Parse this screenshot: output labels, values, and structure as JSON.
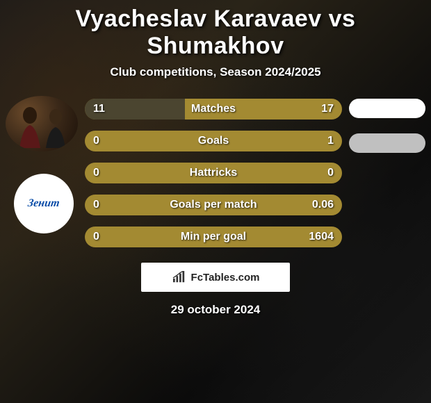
{
  "title": "Vyacheslav Karavaev vs Shumakhov",
  "subtitle": "Club competitions, Season 2024/2025",
  "date": "29 october 2024",
  "attribution": "FcTables.com",
  "club_text": "Зенит",
  "colors": {
    "bar_bg": "#a38a32",
    "bar_fill": "#4b4530",
    "oval1": "#ffffff",
    "oval2": "#c0c0c0",
    "text": "#ffffff"
  },
  "bars": [
    {
      "label": "Matches",
      "left": "11",
      "right": "17",
      "left_pct": 39,
      "right_pct": 61
    },
    {
      "label": "Goals",
      "left": "0",
      "right": "1",
      "left_pct": 0,
      "right_pct": 100
    },
    {
      "label": "Hattricks",
      "left": "0",
      "right": "0",
      "left_pct": 0,
      "right_pct": 0
    },
    {
      "label": "Goals per match",
      "left": "0",
      "right": "0.06",
      "left_pct": 0,
      "right_pct": 100
    },
    {
      "label": "Min per goal",
      "left": "0",
      "right": "1604",
      "left_pct": 0,
      "right_pct": 100
    }
  ]
}
